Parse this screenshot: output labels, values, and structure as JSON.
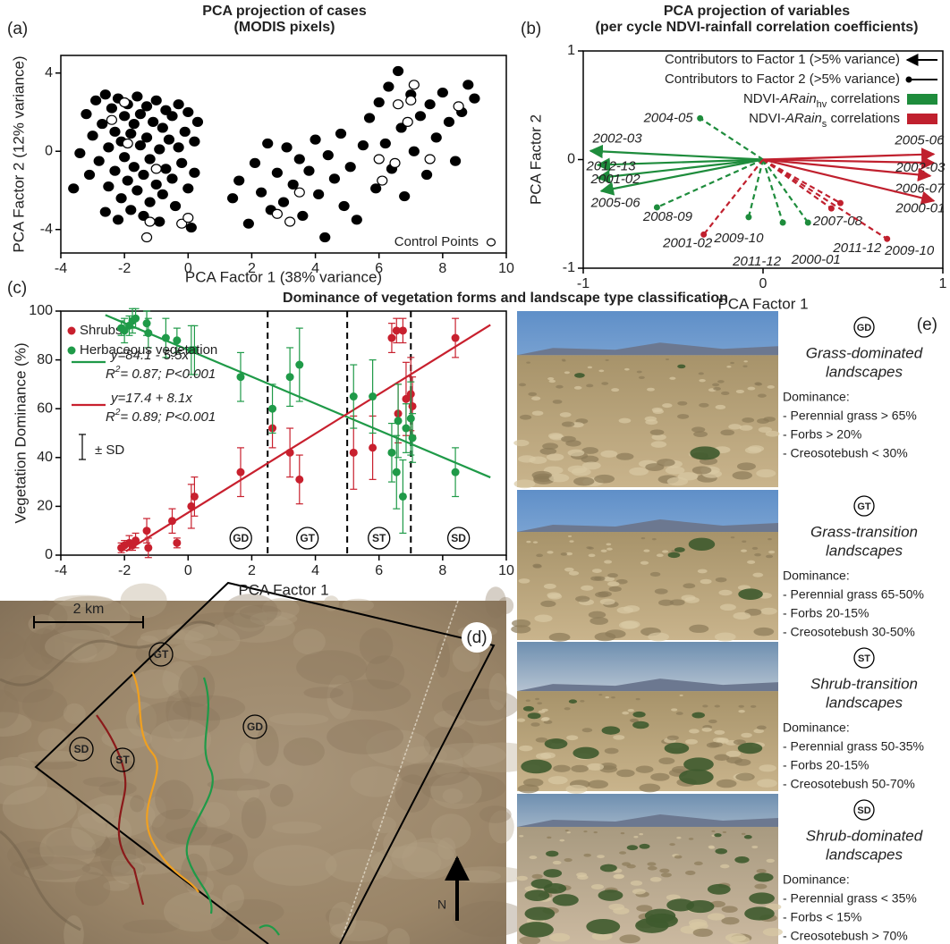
{
  "chart_data": [
    {
      "type": "scatter",
      "panel_label": "(a)",
      "title": [
        "PCA projection of cases",
        "(MODIS pixels)"
      ],
      "xlabel": "PCA Factor 1 (38% variance)",
      "ylabel": "PCA Factor 2 (12% variance)",
      "xlim": [
        -4,
        10
      ],
      "ylim": [
        -5.2,
        4.9
      ],
      "xticks": [
        -4,
        -2,
        0,
        2,
        4,
        6,
        8,
        10
      ],
      "yticks": [
        -4,
        0,
        4
      ],
      "series": [
        {
          "color": "#000000",
          "x": [
            -3.2,
            -3.0,
            -2.9,
            -2.8,
            -2.7,
            -2.6,
            -2.5,
            -2.5,
            -2.4,
            -2.3,
            -2.3,
            -2.2,
            -2.1,
            -2.1,
            -2.0,
            -2.0,
            -1.9,
            -1.9,
            -1.8,
            -1.8,
            -1.7,
            -1.7,
            -1.6,
            -1.6,
            -1.5,
            -1.5,
            -1.4,
            -1.4,
            -1.3,
            -1.3,
            -1.2,
            -1.2,
            -1.1,
            -1.0,
            -1.0,
            -0.9,
            -0.9,
            -0.8,
            -0.8,
            -0.7,
            -0.7,
            -0.6,
            -0.5,
            -0.5,
            -0.4,
            -0.3,
            -0.3,
            -0.2,
            -0.1,
            0.0,
            0.0,
            0.1,
            0.2,
            0.2,
            0.3,
            -3.4,
            -3.6,
            -3.1,
            -2.6,
            -2.2,
            1.4,
            1.6,
            1.9,
            2.1,
            2.3,
            2.5,
            2.6,
            2.8,
            3.0,
            3.1,
            3.3,
            3.5,
            3.6,
            3.8,
            4.0,
            4.1,
            4.3,
            4.4,
            4.6,
            4.8,
            4.9,
            5.1,
            5.3,
            5.5,
            5.7,
            5.9,
            6.0,
            6.2,
            6.3,
            6.4,
            6.6,
            6.7,
            6.8,
            7.0,
            7.1,
            7.3,
            7.5,
            7.6,
            7.8,
            8.0,
            8.2,
            8.4,
            8.6,
            8.8,
            9.0
          ],
          "values": [
            1.9,
            0.8,
            2.6,
            -0.5,
            1.4,
            2.9,
            0.2,
            -1.8,
            2.2,
            -1.0,
            1.0,
            2.7,
            -2.4,
            0.5,
            1.8,
            -0.3,
            2.4,
            -1.5,
            0.9,
            -3.0,
            1.4,
            -0.8,
            2.8,
            -2.0,
            0.3,
            1.9,
            -1.2,
            -3.3,
            2.3,
            0.7,
            -0.4,
            -2.6,
            1.5,
            2.6,
            -1.7,
            0.1,
            -3.6,
            1.2,
            -2.2,
            2.1,
            -0.9,
            0.6,
            -1.4,
            1.8,
            -2.8,
            0.2,
            2.4,
            -0.6,
            1.0,
            -1.9,
            2.0,
            -3.9,
            0.5,
            -1.1,
            1.5,
            -0.1,
            -1.9,
            -1.2,
            -3.1,
            -3.5,
            -2.4,
            -1.5,
            -3.7,
            -0.6,
            -2.1,
            0.4,
            -3.0,
            -1.1,
            -2.6,
            0.2,
            -1.7,
            -0.4,
            -3.3,
            -1.0,
            0.6,
            -2.2,
            -4.4,
            -0.2,
            -1.4,
            0.9,
            -2.8,
            -0.8,
            -3.5,
            0.3,
            1.7,
            -1.9,
            2.5,
            0.4,
            3.3,
            -0.9,
            4.1,
            1.2,
            -2.3,
            2.9,
            0.0,
            1.8,
            -1.2,
            2.4,
            0.7,
            3.0,
            1.5,
            -0.5,
            2.0,
            3.4,
            2.7
          ]
        },
        {
          "name": "Control Points",
          "color": "#ffffff",
          "x": [
            -2.4,
            -1.9,
            -1.2,
            -1.0,
            -0.2,
            0.0,
            -1.3,
            -2.0,
            2.8,
            3.2,
            3.5,
            6.0,
            6.1,
            6.5,
            6.6,
            6.9,
            7.0,
            7.1,
            7.6,
            8.5
          ],
          "values": [
            1.6,
            0.4,
            -3.6,
            -0.9,
            -3.7,
            -3.4,
            -4.4,
            2.5,
            -3.2,
            -3.6,
            -2.1,
            -0.4,
            -1.5,
            -0.6,
            2.4,
            1.5,
            2.6,
            3.4,
            -0.4,
            2.3
          ]
        }
      ]
    },
    {
      "type": "biplot",
      "panel_label": "(b)",
      "title": [
        "PCA projection of variables",
        "(per cycle NDVI-rainfall correlation coefficients)"
      ],
      "xlabel": "PCA Factor 1",
      "ylabel": "PCA Factor 2",
      "xlim": [
        -1,
        1
      ],
      "ylim": [
        -1,
        1
      ],
      "xticks": [
        -1,
        0,
        1
      ],
      "yticks": [
        -1,
        0,
        1
      ],
      "legend": [
        "Contributors to Factor 1 (>5% variance)",
        "Contributors to Factor 2 (>5% variance)"
      ],
      "groups": [
        {
          "pre": "NDVI-",
          "it": "ARain",
          "sub": "hv",
          "post": " correlations",
          "color": "#1e8c3c"
        },
        {
          "pre": "NDVI-",
          "it": "ARain",
          "sub": "s",
          "post": " correlations",
          "color": "#c0202e"
        }
      ],
      "arrows": [
        {
          "label": "2002-03",
          "x": -0.96,
          "y": 0.08,
          "group": 0,
          "factor": 1
        },
        {
          "label": "2012-13",
          "x": -0.92,
          "y": -0.05,
          "group": 0,
          "factor": 1
        },
        {
          "label": "2001-02",
          "x": -0.92,
          "y": -0.17,
          "group": 0,
          "factor": 1
        },
        {
          "label": "2005-06",
          "x": -0.9,
          "y": -0.29,
          "group": 0,
          "factor": 1
        },
        {
          "label": "2004-05",
          "x": -0.35,
          "y": 0.38,
          "group": 0,
          "factor": 2
        },
        {
          "label": "2008-09",
          "x": -0.59,
          "y": -0.44,
          "group": 0,
          "factor": 2
        },
        {
          "label": "2009-10",
          "x": -0.08,
          "y": -0.53,
          "group": 0,
          "factor": 2
        },
        {
          "label": "2011-12",
          "x": 0.11,
          "y": -0.58,
          "group": 0,
          "factor": 2
        },
        {
          "label": "2000-01",
          "x": 0.25,
          "y": -0.58,
          "group": 0,
          "factor": 2
        },
        {
          "label": "2005-06",
          "x": 0.95,
          "y": 0.05,
          "group": 1,
          "factor": 1
        },
        {
          "label": "2002-03",
          "x": 0.95,
          "y": -0.03,
          "group": 1,
          "factor": 1
        },
        {
          "label": "2006-07",
          "x": 0.93,
          "y": -0.15,
          "group": 1,
          "factor": 1
        },
        {
          "label": "2000-01",
          "x": 0.95,
          "y": -0.38,
          "group": 1,
          "factor": 1
        },
        {
          "label": "2001-02",
          "x": -0.33,
          "y": -0.69,
          "group": 1,
          "factor": 2
        },
        {
          "label": "2007-08",
          "x": 0.43,
          "y": -0.4,
          "group": 1,
          "factor": 2
        },
        {
          "label": "2011-12",
          "x": 0.38,
          "y": -0.45,
          "group": 1,
          "factor": 2
        },
        {
          "label": "2009-10",
          "x": 0.69,
          "y": -0.73,
          "group": 1,
          "factor": 2
        }
      ]
    },
    {
      "type": "errorbar",
      "panel_label": "(c)",
      "title": "Dominance of vegetation forms and landscape type classification",
      "xlabel": "PCA Factor 1",
      "ylabel": "Vegetation Dominance (%)",
      "xlim": [
        -4,
        10
      ],
      "ylim": [
        0,
        100
      ],
      "xticks": [
        -4,
        -2,
        0,
        2,
        4,
        6,
        8,
        10
      ],
      "yticks": [
        0,
        20,
        40,
        60,
        80,
        100
      ],
      "series": [
        {
          "name": "Shrubs",
          "color": "#c8202e",
          "x": [
            -2.1,
            -2.0,
            -1.85,
            -1.75,
            -1.65,
            -1.3,
            -1.25,
            -0.5,
            -0.35,
            0.1,
            0.2,
            1.65,
            2.65,
            3.2,
            3.5,
            5.2,
            5.8,
            6.4,
            6.55,
            6.75,
            6.6,
            6.85,
            7.0,
            7.05,
            8.4
          ],
          "values": [
            3,
            4,
            5,
            4,
            6,
            10,
            3,
            14,
            5,
            20,
            24,
            34,
            52,
            42,
            31,
            42,
            44,
            89,
            92,
            92,
            58,
            64,
            66,
            61,
            89
          ],
          "errors": [
            2,
            2,
            3,
            2,
            3,
            5,
            4,
            5,
            2,
            9,
            8,
            10,
            8,
            10,
            10,
            15,
            13,
            6,
            5,
            5,
            12,
            15,
            15,
            12,
            8
          ]
        },
        {
          "name": "Herbaceous vegetation",
          "color": "#1f9a48",
          "x": [
            -2.1,
            -2.0,
            -1.85,
            -1.75,
            -1.65,
            -1.3,
            -1.25,
            -0.7,
            -0.35,
            0.1,
            0.2,
            1.65,
            2.65,
            3.2,
            3.5,
            5.2,
            5.8,
            6.4,
            6.55,
            6.6,
            6.75,
            6.85,
            7.0,
            7.05,
            8.4
          ],
          "values": [
            93,
            92,
            94,
            96,
            97,
            95,
            91,
            89,
            88,
            84,
            84,
            73,
            60,
            73,
            78,
            65,
            65,
            42,
            34,
            55,
            24,
            52,
            56,
            48,
            34
          ],
          "errors": [
            3,
            5,
            4,
            5,
            4,
            5,
            6,
            8,
            5,
            10,
            10,
            10,
            10,
            12,
            15,
            13,
            15,
            12,
            15,
            15,
            15,
            10,
            15,
            10,
            10
          ]
        }
      ],
      "fits": [
        {
          "equation": "y=84.1 - 5.5x",
          "r": "R",
          "sup": "2",
          "rest": "= 0.87; P<0.001",
          "color": "#1f9a48",
          "intercept": 84.1,
          "slope": -5.5,
          "x_range": [
            -2.6,
            9.5
          ]
        },
        {
          "equation": "y=17.4 + 8.1x",
          "r": "R",
          "sup": "2",
          "rest": "= 0.89; P<0.001",
          "color": "#c8202e",
          "intercept": 17.4,
          "slope": 8.1,
          "x_range": [
            -1.95,
            9.5
          ]
        }
      ],
      "error_legend": "± SD",
      "zones": {
        "dividers": [
          2.5,
          5,
          7
        ],
        "labels": [
          "GD",
          "GT",
          "ST",
          "SD"
        ]
      }
    }
  ],
  "map": {
    "panel_label": "(d)",
    "scale": "2 km",
    "north": "N",
    "labels": [
      "SD",
      "ST",
      "GT",
      "GD"
    ]
  },
  "landscapes": {
    "panel_label": "(e)",
    "types": [
      {
        "code": "GD",
        "name": [
          "Grass-dominated",
          "landscapes"
        ],
        "heading": "Dominance:",
        "items": [
          "- Perennial grass > 65%",
          "- Forbs > 20%",
          "- Creosotebush < 30%"
        ]
      },
      {
        "code": "GT",
        "name": [
          "Grass-transition",
          "landscapes"
        ],
        "heading": "Dominance:",
        "items": [
          "- Perennial grass 65-50%",
          "- Forbs 20-15%",
          "- Creosotebush 30-50%"
        ]
      },
      {
        "code": "ST",
        "name": [
          "Shrub-transition",
          "landscapes"
        ],
        "heading": "Dominance:",
        "items": [
          "- Perennial grass 50-35%",
          "- Forbs 20-15%",
          "- Creosotebush 50-70%"
        ]
      },
      {
        "code": "SD",
        "name": [
          "Shrub-dominated",
          "landscapes"
        ],
        "heading": "Dominance:",
        "items": [
          "- Perennial grass < 35%",
          "- Forbs < 15%",
          "- Creosotebush > 70%"
        ]
      }
    ]
  }
}
